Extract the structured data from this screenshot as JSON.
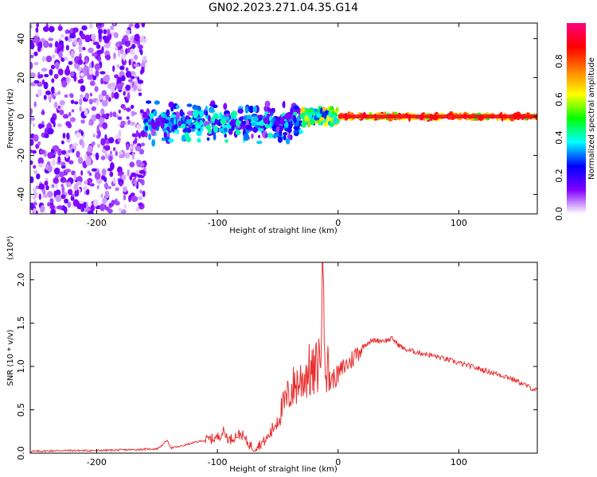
{
  "title": "GN02.2023.271.04.35.G14",
  "chart_data": [
    {
      "type": "heatmap",
      "title": "GN02.2023.271.04.35.G14",
      "xlabel": "Height of straight line (km)",
      "ylabel": "Frequency (Hz)",
      "xlim": [
        -255,
        165
      ],
      "ylim": [
        -50,
        48
      ],
      "xticks": [
        -200,
        -100,
        0,
        100
      ],
      "yticks": [
        -40,
        -20,
        0,
        20,
        40
      ],
      "colorbar": {
        "label": "Normalized spectral amplitude",
        "range": [
          0,
          1
        ],
        "ticks": [
          0.0,
          0.2,
          0.4,
          0.6,
          0.8
        ],
        "tick_labels": [
          "0.0",
          "0.2",
          "0.4",
          "0.6",
          "0.8"
        ],
        "colors": [
          "#ffffff",
          "#8000ff",
          "#0000ff",
          "#00ffff",
          "#00ff00",
          "#ffff00",
          "#ff8000",
          "#ff0000",
          "#ff0080"
        ]
      },
      "regions": [
        {
          "x": [
            -255,
            -160
          ],
          "freq": [
            -50,
            48
          ],
          "amplitude": 0.1,
          "description_level": "noise"
        },
        {
          "x": [
            -160,
            -30
          ],
          "freq": [
            -15,
            8
          ],
          "amplitude": 0.25
        },
        {
          "x": [
            -30,
            0
          ],
          "freq": [
            -4,
            4
          ],
          "amplitude": 0.5
        },
        {
          "x": [
            0,
            165
          ],
          "freq": [
            -2,
            2
          ],
          "amplitude": 0.95
        }
      ]
    },
    {
      "type": "line",
      "xlabel": "Height of straight line (km)",
      "ylabel": "SNR (10 * v/v)",
      "ylabel_exponent": "(x10⁴)",
      "xlim": [
        -255,
        165
      ],
      "ylim": [
        0,
        2.2
      ],
      "xticks": [
        -200,
        -100,
        0,
        100
      ],
      "yticks": [
        0.0,
        0.5,
        1.0,
        1.5,
        2.0
      ],
      "ytick_labels": [
        "0.0",
        "0.5",
        "1.0",
        "1.5",
        "2.0"
      ],
      "color": "#e83030",
      "series": [
        {
          "x": [
            -255,
            -230,
            -200,
            -170,
            -150,
            -145,
            -142,
            -138,
            -130,
            -120,
            -110,
            -100,
            -95,
            -90,
            -85,
            -80,
            -75,
            -70,
            -65,
            -60,
            -55,
            -50,
            -45,
            -40,
            -35,
            -30,
            -25,
            -20,
            -15,
            -12,
            -10,
            -5,
            0,
            5,
            10,
            15,
            20,
            25,
            30,
            35,
            40,
            45,
            50,
            55,
            60,
            70,
            80,
            90,
            100,
            110,
            120,
            130,
            140,
            150,
            160,
            165
          ],
          "y": [
            0.02,
            0.03,
            0.03,
            0.04,
            0.05,
            0.1,
            0.15,
            0.06,
            0.08,
            0.12,
            0.15,
            0.18,
            0.25,
            0.15,
            0.2,
            0.22,
            0.12,
            0.06,
            0.1,
            0.15,
            0.25,
            0.4,
            0.55,
            0.7,
            0.8,
            0.85,
            0.95,
            0.9,
            1.1,
            2.2,
            1.0,
            0.85,
            0.9,
            1.0,
            1.05,
            1.15,
            1.22,
            1.28,
            1.3,
            1.3,
            1.3,
            1.32,
            1.25,
            1.2,
            1.18,
            1.15,
            1.12,
            1.08,
            1.04,
            1.0,
            0.96,
            0.92,
            0.88,
            0.82,
            0.75,
            0.72
          ]
        }
      ]
    }
  ]
}
